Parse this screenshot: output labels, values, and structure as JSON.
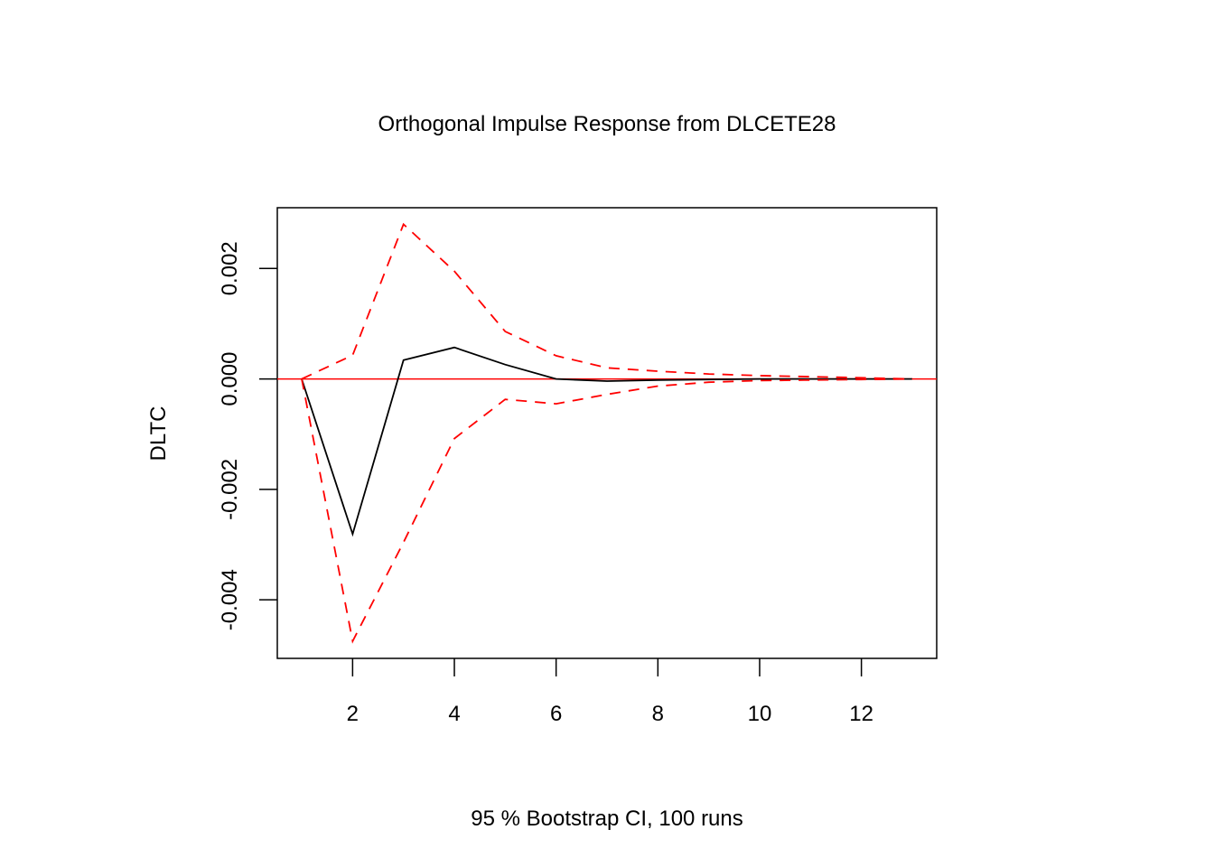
{
  "chart_data": {
    "type": "line",
    "title": "Orthogonal Impulse Response from DLCETE28",
    "xlabel": "95 % Bootstrap CI,  100 runs",
    "ylabel": "DLTC",
    "x": [
      1,
      2,
      3,
      4,
      5,
      6,
      7,
      8,
      9,
      10,
      11,
      12,
      13
    ],
    "xlim": [
      0.52,
      13.48
    ],
    "ylim": [
      -0.00506,
      0.0031
    ],
    "xticks": [
      "2",
      "4",
      "6",
      "8",
      "10",
      "12"
    ],
    "xtick_values": [
      2,
      4,
      6,
      8,
      10,
      12
    ],
    "yticks": [
      "-0.004",
      "-0.002",
      "0.000",
      "0.002"
    ],
    "ytick_values": [
      -0.004,
      -0.002,
      0,
      0.002
    ],
    "grid": false,
    "series": [
      {
        "role": "response",
        "color": "#000000",
        "style": "solid",
        "values": [
          0,
          -0.00281,
          0.00034,
          0.00057,
          0.00026,
          0.0,
          -4e-05,
          -2e-05,
          -1e-05,
          0,
          0,
          0,
          0
        ]
      },
      {
        "role": "upper",
        "color": "#ff0000",
        "style": "dashed",
        "values": [
          0,
          0.00043,
          0.0028,
          0.00195,
          0.00086,
          0.00042,
          0.0002,
          0.00014,
          9e-05,
          6e-05,
          4e-05,
          2e-05,
          0
        ]
      },
      {
        "role": "lower",
        "color": "#ff0000",
        "style": "dashed",
        "values": [
          0,
          -0.00475,
          -0.00296,
          -0.00108,
          -0.00037,
          -0.00045,
          -0.00028,
          -0.00013,
          -6e-05,
          -3e-05,
          -2e-05,
          -1e-05,
          0
        ]
      }
    ],
    "reference_line": {
      "y": 0,
      "color": "#ff0000"
    }
  }
}
